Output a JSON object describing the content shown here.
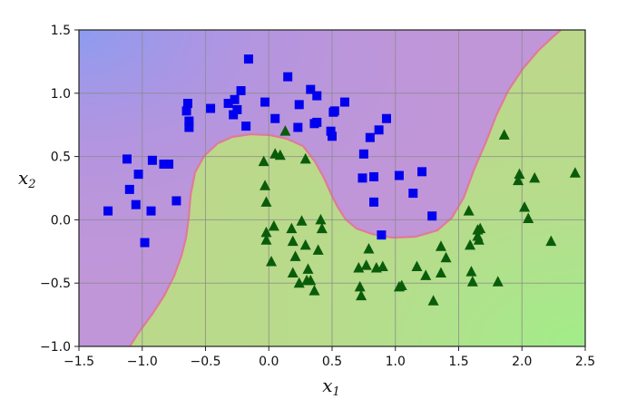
{
  "chart_data": {
    "type": "scatter",
    "title": "",
    "xlabel": "x",
    "xlabel_sub": "1",
    "ylabel": "x",
    "ylabel_sub": "2",
    "xlim": [
      -1.5,
      2.5
    ],
    "ylim": [
      -1.0,
      1.5
    ],
    "x_ticks": [
      -1.5,
      -1.0,
      -0.5,
      0.0,
      0.5,
      1.0,
      1.5,
      2.0,
      2.5
    ],
    "y_ticks": [
      -1.0,
      -0.5,
      0.0,
      0.5,
      1.0,
      1.5
    ],
    "x_tick_labels": [
      "−1.5",
      "−1.0",
      "−0.5",
      "0.0",
      "0.5",
      "1.0",
      "1.5",
      "2.0",
      "2.5"
    ],
    "y_tick_labels": [
      "−1.0",
      "−0.5",
      "0.0",
      "0.5",
      "1.0",
      "1.5"
    ],
    "grid": true,
    "legend": "none",
    "colors": {
      "class0_region": "#c096d8",
      "class1_region": "#bcd88a",
      "class0_marker": "#0000ee",
      "class1_marker": "#0a5c0a",
      "boundary": "#e07a9a"
    },
    "series": [
      {
        "marker": "square",
        "color": "#0000ee",
        "points": [
          [
            -1.27,
            0.07
          ],
          [
            -1.12,
            0.48
          ],
          [
            -1.1,
            0.24
          ],
          [
            -1.05,
            0.12
          ],
          [
            -1.03,
            0.36
          ],
          [
            -0.98,
            -0.18
          ],
          [
            -0.93,
            0.07
          ],
          [
            -0.92,
            0.47
          ],
          [
            -0.83,
            0.44
          ],
          [
            -0.79,
            0.44
          ],
          [
            -0.73,
            0.15
          ],
          [
            -0.65,
            0.86
          ],
          [
            -0.64,
            0.92
          ],
          [
            -0.63,
            0.78
          ],
          [
            -0.63,
            0.73
          ],
          [
            -0.46,
            0.88
          ],
          [
            -0.32,
            0.92
          ],
          [
            -0.28,
            0.83
          ],
          [
            -0.27,
            0.95
          ],
          [
            -0.25,
            0.87
          ],
          [
            -0.22,
            1.02
          ],
          [
            -0.18,
            0.74
          ],
          [
            -0.16,
            1.27
          ],
          [
            -0.03,
            0.93
          ],
          [
            0.05,
            0.8
          ],
          [
            0.15,
            1.13
          ],
          [
            0.23,
            0.73
          ],
          [
            0.24,
            0.91
          ],
          [
            0.33,
            1.03
          ],
          [
            0.36,
            0.76
          ],
          [
            0.38,
            0.98
          ],
          [
            0.38,
            0.77
          ],
          [
            0.49,
            0.7
          ],
          [
            0.5,
            0.66
          ],
          [
            0.51,
            0.85
          ],
          [
            0.52,
            0.86
          ],
          [
            0.6,
            0.93
          ],
          [
            0.74,
            0.33
          ],
          [
            0.75,
            0.52
          ],
          [
            0.8,
            0.65
          ],
          [
            0.83,
            0.34
          ],
          [
            0.83,
            0.14
          ],
          [
            0.87,
            0.71
          ],
          [
            0.89,
            -0.12
          ],
          [
            0.93,
            0.8
          ],
          [
            1.03,
            0.35
          ],
          [
            1.14,
            0.21
          ],
          [
            1.21,
            0.38
          ],
          [
            1.29,
            0.03
          ]
        ]
      },
      {
        "marker": "triangle",
        "color": "#0a5c0a",
        "points": [
          [
            -0.04,
            0.46
          ],
          [
            -0.03,
            0.27
          ],
          [
            -0.02,
            0.14
          ],
          [
            -0.02,
            -0.1
          ],
          [
            -0.02,
            -0.16
          ],
          [
            0.02,
            -0.33
          ],
          [
            0.04,
            -0.05
          ],
          [
            0.05,
            0.52
          ],
          [
            0.09,
            0.51
          ],
          [
            0.13,
            0.7
          ],
          [
            0.18,
            -0.07
          ],
          [
            0.19,
            -0.17
          ],
          [
            0.19,
            -0.42
          ],
          [
            0.21,
            -0.29
          ],
          [
            0.24,
            -0.5
          ],
          [
            0.26,
            -0.01
          ],
          [
            0.29,
            0.48
          ],
          [
            0.29,
            -0.2
          ],
          [
            0.3,
            -0.48
          ],
          [
            0.31,
            -0.39
          ],
          [
            0.33,
            -0.48
          ],
          [
            0.36,
            -0.56
          ],
          [
            0.39,
            -0.24
          ],
          [
            0.41,
            0.0
          ],
          [
            0.42,
            -0.07
          ],
          [
            0.71,
            -0.38
          ],
          [
            0.72,
            -0.53
          ],
          [
            0.73,
            -0.6
          ],
          [
            0.77,
            -0.36
          ],
          [
            0.79,
            -0.23
          ],
          [
            0.85,
            -0.38
          ],
          [
            0.9,
            -0.37
          ],
          [
            1.03,
            -0.53
          ],
          [
            1.05,
            -0.52
          ],
          [
            1.17,
            -0.37
          ],
          [
            1.24,
            -0.44
          ],
          [
            1.3,
            -0.64
          ],
          [
            1.36,
            -0.21
          ],
          [
            1.36,
            -0.42
          ],
          [
            1.4,
            -0.3
          ],
          [
            1.58,
            0.07
          ],
          [
            1.59,
            -0.2
          ],
          [
            1.6,
            -0.41
          ],
          [
            1.61,
            -0.49
          ],
          [
            1.65,
            -0.08
          ],
          [
            1.65,
            -0.13
          ],
          [
            1.66,
            -0.16
          ],
          [
            1.67,
            -0.07
          ],
          [
            1.81,
            -0.49
          ],
          [
            1.86,
            0.67
          ],
          [
            1.97,
            0.31
          ],
          [
            1.98,
            0.36
          ],
          [
            2.02,
            0.1
          ],
          [
            2.05,
            0.01
          ],
          [
            2.1,
            0.33
          ],
          [
            2.23,
            -0.17
          ],
          [
            2.42,
            0.37
          ]
        ]
      }
    ]
  }
}
